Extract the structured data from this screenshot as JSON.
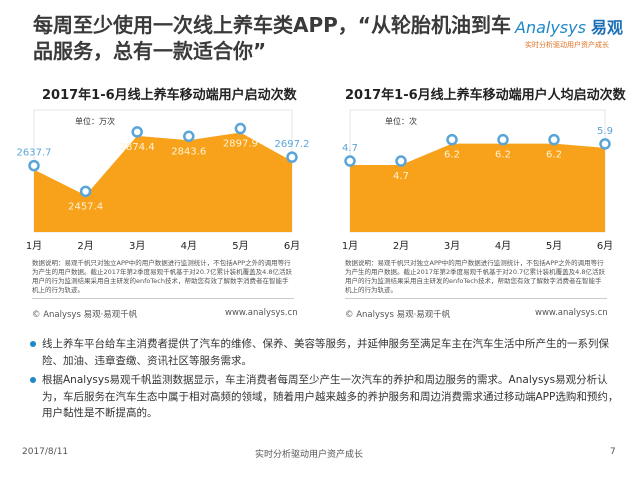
{
  "slide": {
    "title": "每周至少使用一次线上养车类APP，“从轮胎机油到车品服务，总有一款适合你”",
    "logo": {
      "brand": "Analysys",
      "brand_cn": "易观",
      "tagline": "实时分析驱动用户资产成长"
    },
    "note": "数据说明：易观千帆只对独立APP中的用户数据进行监测统计，不包括APP之外的调用等行为产生的用户数据。截止2017年第2季度易观千帆基于对20.7亿累计装机覆盖及4.8亿活跃用户的行为监测结果采用自主研发的enfoTech技术，帮助您有效了解数字消费者在智能手机上的行为轨迹。",
    "copyright": "© Analysys 易观·易观千帆",
    "url": "www.analysys.cn",
    "bullets": [
      "线上养车平台给车主消费者提供了汽车的维修、保养、美容等服务，并延伸服务至满足车主在汽车生活中所产生的一系列保险、加油、违章查缴、资讯社区等服务需求。",
      "根据Analysys易观千帆监测数据显示，车主消费者每周至少产生一次汽车的养护和周边服务的需求。Analysys易观分析认为，车后服务在汽车生态中属于相对高频的领域，随着用户越来越多的养护服务和周边消费需求通过移动端APP选购和预约，用户黏性是不断提高的。"
    ],
    "footer": {
      "date": "2017/8/11",
      "slogan": "实时分析驱动用户资产成长",
      "page": "7"
    }
  },
  "colors": {
    "area": "#f7a21a",
    "marker": "#5aa5d8",
    "accent": "#1e88c8"
  },
  "chart_data": [
    {
      "type": "area",
      "title": "2017年1-6月线上养车移动端用户启动次数",
      "unit_label": "单位：万次",
      "categories": [
        "1月",
        "2月",
        "3月",
        "4月",
        "5月",
        "6月"
      ],
      "values": [
        2637.7,
        2457.4,
        2874.4,
        2843.6,
        2897.9,
        2697.2
      ],
      "labels": [
        "2637.7",
        "2457.4",
        "2874.4",
        "2843.6",
        "2897.9",
        "2697.2"
      ],
      "ylim": [
        2200,
        3000
      ],
      "grid": false
    },
    {
      "type": "area",
      "title": "2017年1-6月线上养车移动端用户人均启动次数",
      "unit_label": "单位：次",
      "categories": [
        "1月",
        "2月",
        "3月",
        "4月",
        "5月",
        "6月"
      ],
      "values": [
        4.7,
        4.7,
        6.2,
        6.2,
        6.2,
        5.9
      ],
      "labels": [
        "4.7",
        "4.7",
        "6.2",
        "6.2",
        "6.2",
        "5.9"
      ],
      "ylim": [
        0,
        8
      ],
      "grid": false
    }
  ]
}
